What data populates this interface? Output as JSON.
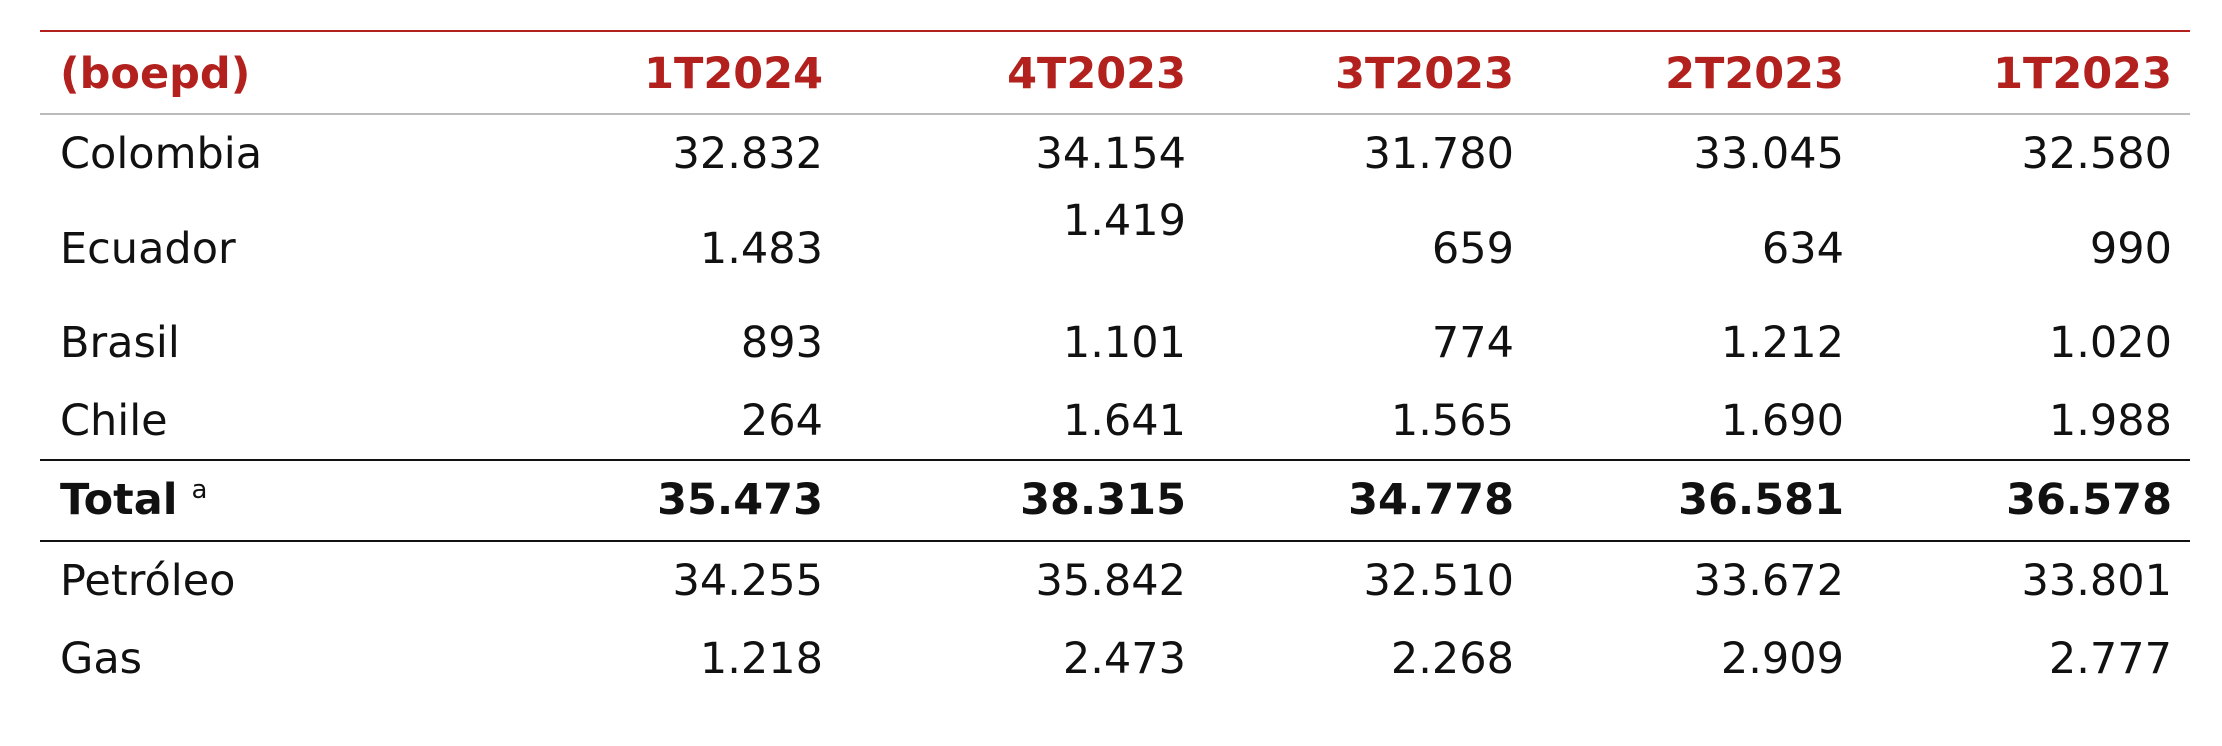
{
  "table": {
    "header": [
      "(boepd)",
      "1T2024",
      "4T2023",
      "3T2023",
      "2T2023",
      "1T2023"
    ],
    "rows": [
      [
        "Colombia",
        "32.832",
        "34.154",
        "31.780",
        "33.045",
        "32.580"
      ],
      [
        "Ecuador",
        "1.483",
        "1.419",
        "659",
        "634",
        "990"
      ],
      [
        "Brasil",
        "893",
        "1.101",
        "774",
        "1.212",
        "1.020"
      ],
      [
        "Chile",
        "264",
        "1.641",
        "1.565",
        "1.690",
        "1.988"
      ],
      [
        "Total",
        "35.473",
        "38.315",
        "34.778",
        "36.581",
        "36.578"
      ],
      [
        "Petróleo",
        "34.255",
        "35.842",
        "32.510",
        "33.672",
        "33.801"
      ],
      [
        "Gas",
        "1.218",
        "2.473",
        "2.268",
        "2.909",
        "2.777"
      ]
    ],
    "total_marker": "a"
  }
}
